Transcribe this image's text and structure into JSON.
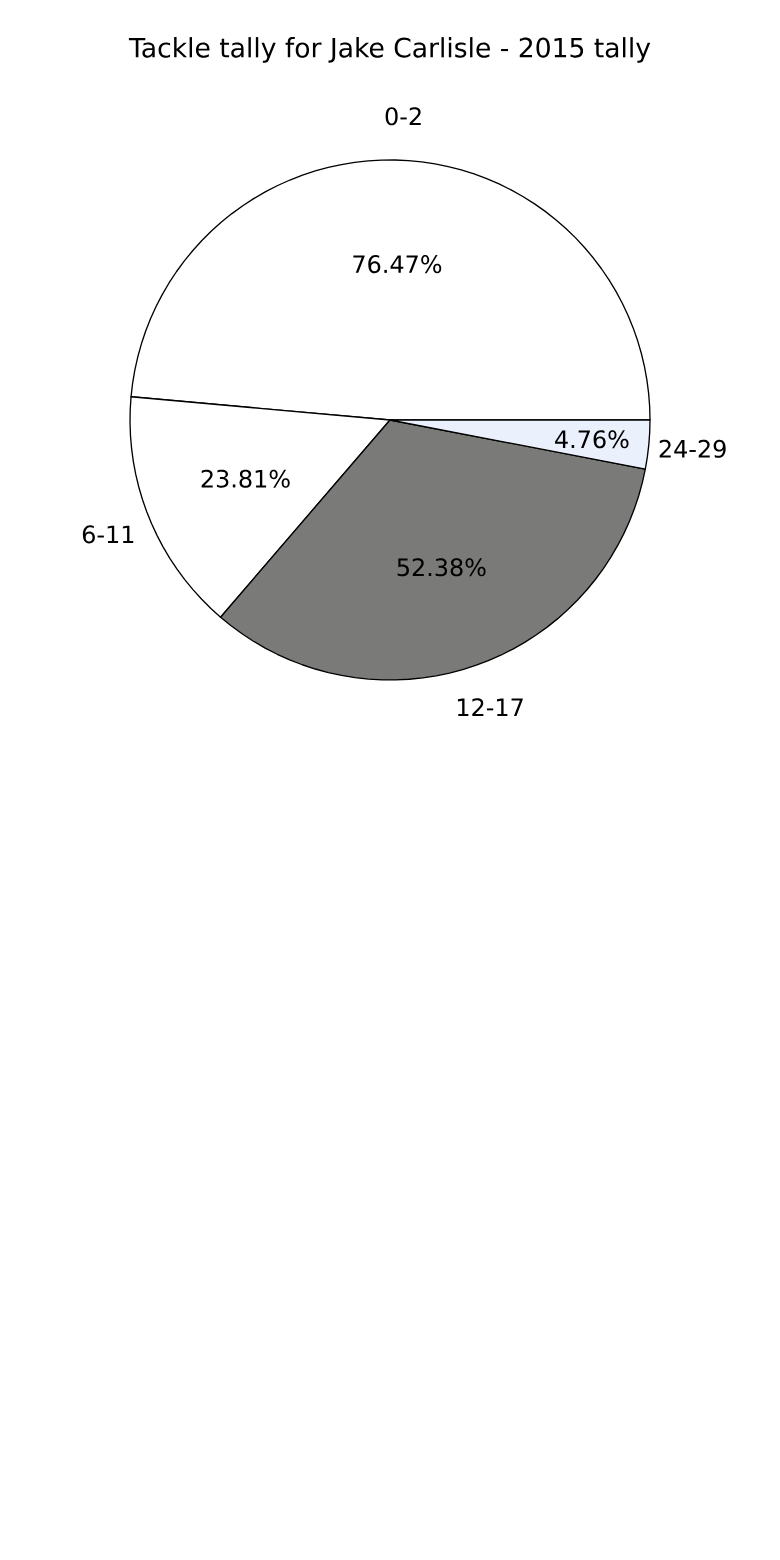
{
  "chart_data": {
    "type": "pie",
    "title": "Tackle tally for Jake Carlisle - 2015 tally",
    "categories": [
      "0-2",
      "6-11",
      "12-17",
      "24-29"
    ],
    "values": [
      76.47,
      23.81,
      52.38,
      4.76
    ],
    "value_labels": [
      "76.47%",
      "23.81%",
      "52.38%",
      "4.76%"
    ],
    "colors": [
      "#ffffff",
      "#ffffff",
      "#7a7b78",
      "#eaf0fc"
    ]
  }
}
